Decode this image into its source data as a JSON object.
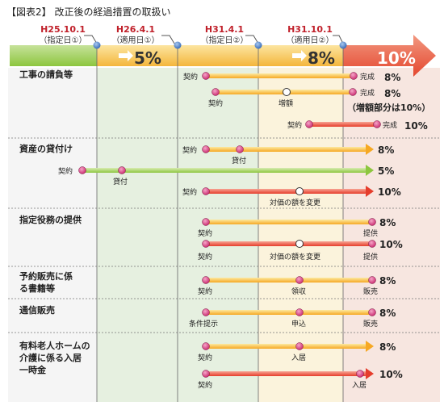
{
  "title": "【図表2】 改正後の経過措置の取扱い",
  "colors": {
    "green": "#8dc63f",
    "yellow": "#f6a823",
    "red": "#e53d2c",
    "label_red": "#c0202a",
    "point": "#d2327a"
  },
  "dates": [
    {
      "date": "H25.10.1",
      "sub": "（指定日①）"
    },
    {
      "date": "H26.4.1",
      "sub": "（適用日①）"
    },
    {
      "date": "H31.4.1",
      "sub": "（指定日②）"
    },
    {
      "date": "H31.10.1",
      "sub": "（適用日②）"
    }
  ],
  "rates": {
    "five": "5%",
    "eight": "8%",
    "ten": "10%"
  },
  "sections": [
    {
      "title": "工事の請負等"
    },
    {
      "title": "資産の貸付け"
    },
    {
      "title": "指定役務の提供"
    },
    {
      "title": "予約販売に係る書籍等"
    },
    {
      "title": "通信販売"
    },
    {
      "title": "有料老人ホームの介護に係る入居一時金"
    }
  ],
  "bar_labels": [
    "契約",
    "完成",
    "8%",
    "契約",
    "増額",
    "完成",
    "8%",
    "（増額部分は10%）",
    "契約",
    "完成",
    "10%",
    "契約",
    "貸付",
    "8%",
    "契約",
    "貸付",
    "5%",
    "契約",
    "対価の額を変更",
    "10%",
    "契約",
    "提供",
    "8%",
    "契約",
    "対価の額を変更",
    "提供",
    "10%",
    "契約",
    "領収",
    "販売",
    "8%",
    "条件提示",
    "申込",
    "販売",
    "8%",
    "契約",
    "入居",
    "8%",
    "契約",
    "入居",
    "10%"
  ]
}
